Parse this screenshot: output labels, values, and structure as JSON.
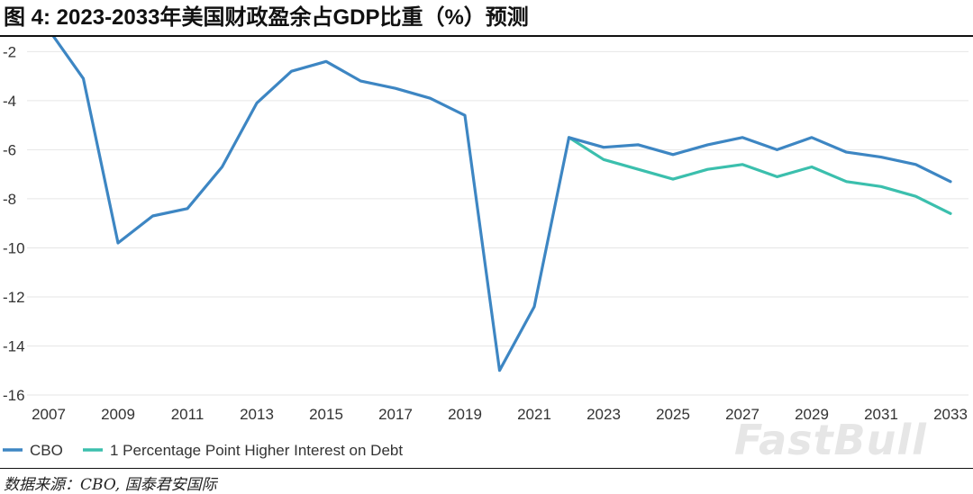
{
  "header": {
    "title": "图 4:  2023-2033年美国财政盈余占GDP比重（%）预测"
  },
  "footer": {
    "source": "数据来源：CBO, 国泰君安国际",
    "watermark": "FastBull"
  },
  "colors": {
    "cbo": "#3d86c3",
    "higher_interest": "#3bbfad",
    "grid": "#e6e6e6"
  },
  "chart_data": {
    "type": "line",
    "title": "",
    "xlabel": "",
    "ylabel": "",
    "xlim": [
      2007,
      2033
    ],
    "ylim": [
      -16,
      -1.4
    ],
    "yticks": [
      -2,
      -4,
      -6,
      -8,
      -10,
      -12,
      -14,
      -16
    ],
    "xticks": [
      "2007",
      "2009",
      "2011",
      "2013",
      "2015",
      "2017",
      "2019",
      "2021",
      "2023",
      "2025",
      "2027",
      "2029",
      "2031",
      "2033"
    ],
    "grid": "horizontal",
    "legend": "bottom-left",
    "series": [
      {
        "name": "CBO",
        "color": "#3d86c3",
        "x": [
          2007,
          2008,
          2009,
          2010,
          2011,
          2012,
          2013,
          2014,
          2015,
          2016,
          2017,
          2018,
          2019,
          2020,
          2021,
          2022,
          2023,
          2024,
          2025,
          2026,
          2027,
          2028,
          2029,
          2030,
          2031,
          2032,
          2033
        ],
        "y": [
          -1.1,
          -3.1,
          -9.8,
          -8.7,
          -8.4,
          -6.7,
          -4.1,
          -2.8,
          -2.4,
          -3.2,
          -3.5,
          -3.9,
          -4.6,
          -15.0,
          -12.4,
          -5.5,
          -5.9,
          -5.8,
          -6.2,
          -5.8,
          -5.5,
          -6.0,
          -5.5,
          -6.1,
          -6.3,
          -6.6,
          -7.3
        ]
      },
      {
        "name": "1 Percentage Point Higher Interest on Debt",
        "color": "#3bbfad",
        "x": [
          2022,
          2023,
          2024,
          2025,
          2026,
          2027,
          2028,
          2029,
          2030,
          2031,
          2032,
          2033
        ],
        "y": [
          -5.5,
          -6.4,
          -6.8,
          -7.2,
          -6.8,
          -6.6,
          -7.1,
          -6.7,
          -7.3,
          -7.5,
          -7.9,
          -8.6
        ]
      }
    ]
  }
}
